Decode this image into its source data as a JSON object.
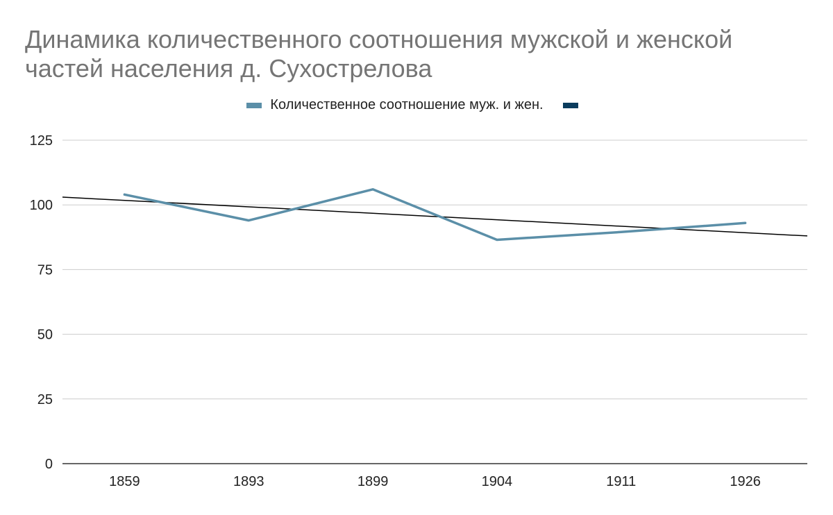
{
  "chart_data": {
    "type": "line",
    "title": "Динамика количественного соотношения мужской и женской частей населения д. Сухострелова",
    "xlabel": "",
    "ylabel": "",
    "categories": [
      "1859",
      "1893",
      "1899",
      "1904",
      "1911",
      "1926"
    ],
    "series": [
      {
        "name": "Количественное соотношение муж. и жен.",
        "values": [
          104,
          94,
          106,
          86.5,
          89.5,
          93
        ],
        "color": "#5b8fa8"
      }
    ],
    "trendline": {
      "name": "",
      "type": "linear",
      "color": "#000000",
      "legend_color": "#0b3c5d",
      "start_value": 103,
      "end_value": 88
    },
    "ylim": [
      0,
      125
    ],
    "yticks": [
      "0",
      "25",
      "50",
      "75",
      "100",
      "125"
    ],
    "grid": true,
    "legend_position": "top"
  }
}
